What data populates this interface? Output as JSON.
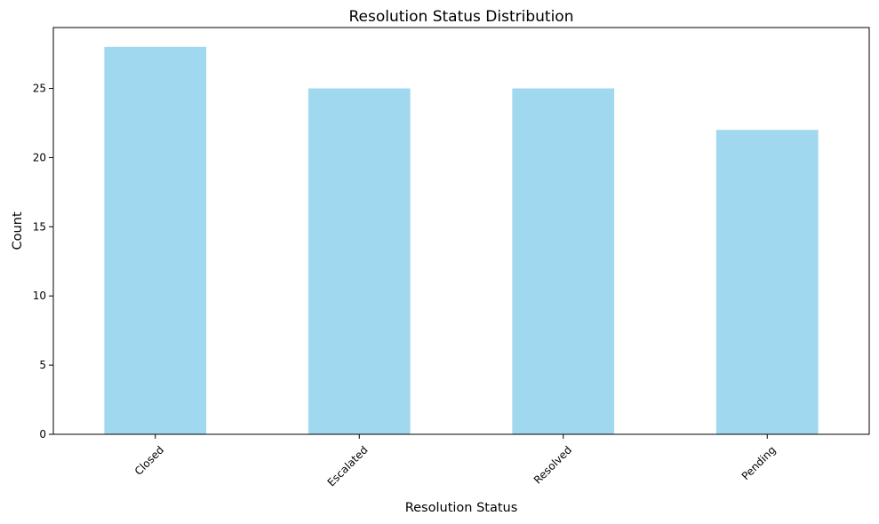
{
  "chart_data": {
    "type": "bar",
    "title": "Resolution Status Distribution",
    "xlabel": "Resolution Status",
    "ylabel": "Count",
    "categories": [
      "Closed",
      "Escalated",
      "Resolved",
      "Pending"
    ],
    "values": [
      28,
      25,
      25,
      22
    ],
    "ylim": [
      0,
      29.4
    ],
    "yticks": [
      0,
      5,
      10,
      15,
      20,
      25
    ],
    "xtick_rotation_deg": 45,
    "bar_color": "#87ceeb",
    "bar_opacity": 0.8,
    "grid": false,
    "legend": "none"
  }
}
